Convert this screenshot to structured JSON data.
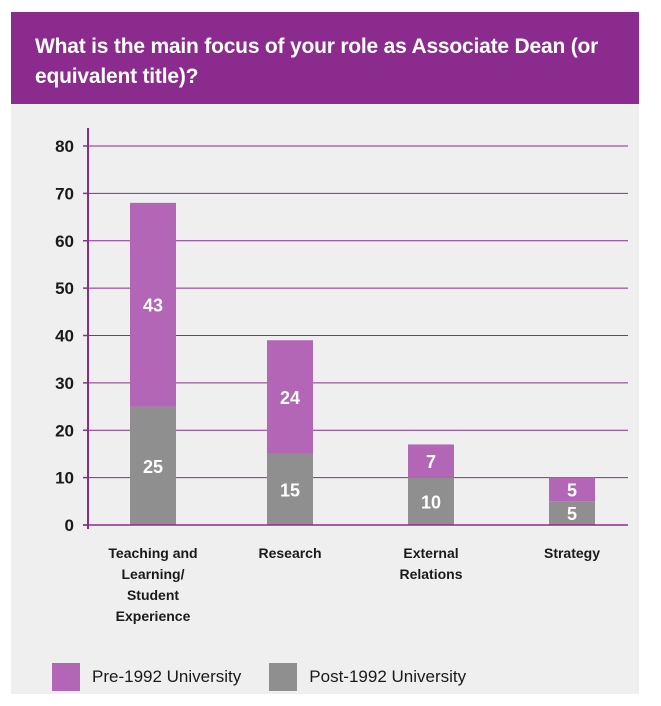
{
  "header": {
    "title": "What is the main focus of your role as Associate Dean (or equivalent title)?"
  },
  "colors": {
    "header_bg": "#8b2b8e",
    "pre_1992": "#b366b6",
    "post_1992": "#8f8f8f",
    "gridline": "#8b2b8e",
    "axis": "#8b2b8e"
  },
  "chart_data": {
    "type": "bar",
    "stacked": true,
    "title": "What is the main focus of your role as Associate Dean (or equivalent title)?",
    "xlabel": "",
    "ylabel": "",
    "ylim": [
      0,
      80
    ],
    "yticks": [
      0,
      10,
      20,
      30,
      40,
      50,
      60,
      70,
      80
    ],
    "grid": true,
    "legend_position": "bottom-left",
    "categories": [
      [
        "Teaching and",
        "Learning/",
        "Student",
        "Experience"
      ],
      [
        "Research"
      ],
      [
        "External",
        "Relations"
      ],
      [
        "Strategy"
      ]
    ],
    "series": [
      {
        "name": "Post-1992 University",
        "values": [
          25,
          15,
          10,
          5
        ]
      },
      {
        "name": "Pre-1992 University",
        "values": [
          43,
          24,
          7,
          5
        ]
      }
    ]
  },
  "legend": [
    {
      "label": "Pre-1992 University",
      "color": "#b366b6"
    },
    {
      "label": "Post-1992 University",
      "color": "#8f8f8f"
    }
  ]
}
